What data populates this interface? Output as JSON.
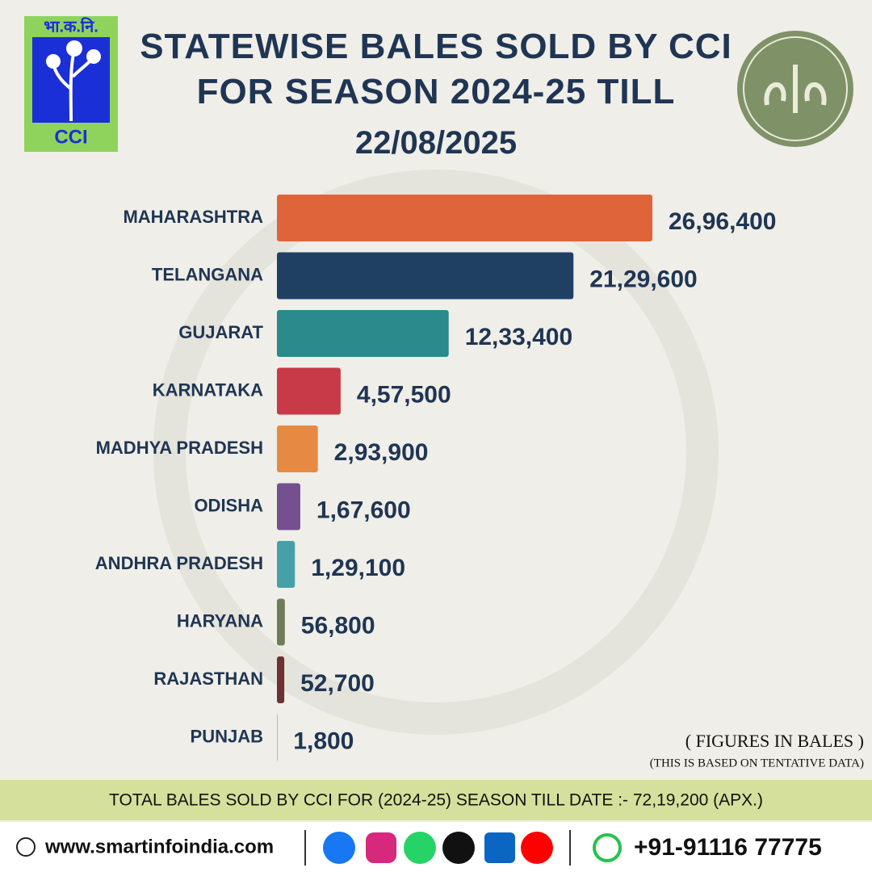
{
  "chart_data": {
    "type": "barh",
    "title": "STATEWISE BALES SOLD BY CCI FOR SEASON 2024-25 TILL",
    "subtitle": "22/08/2025",
    "categories": [
      "MAHARASHTRA",
      "TELANGANA",
      "GUJARAT",
      "KARNATAKA",
      "MADHYA PRADESH",
      "ODISHA",
      "ANDHRA PRADESH",
      "HARYANA",
      "RAJASTHAN",
      "PUNJAB"
    ],
    "values": [
      2696400,
      2129600,
      1233400,
      457500,
      293900,
      167600,
      129100,
      56800,
      52700,
      1800
    ],
    "value_labels": [
      "26,96,400",
      "21,29,600",
      "12,33,400",
      "4,57,500",
      "2,93,900",
      "1,67,600",
      "1,29,100",
      "56,800",
      "52,700",
      "1,800"
    ],
    "colors": [
      "#e0643a",
      "#1f3f63",
      "#2a8a8c",
      "#c93a48",
      "#e68a43",
      "#74508f",
      "#46a0a8",
      "#6f7d56",
      "#6c3133",
      "#1f3f63"
    ],
    "annotations": [
      "( FIGURES IN BALES )",
      "(THIS IS BASED ON TENTATIVE DATA)"
    ]
  },
  "header": {
    "logo_text": "भा.क.नि.",
    "logo_name": "CCI"
  },
  "summary": "TOTAL BALES SOLD BY CCI FOR (2024-25) SEASON TILL DATE :- 72,19,200 (APX.)",
  "footer": {
    "website": "www.smartinfoindia.com",
    "phone": "+91-91116 77775"
  }
}
